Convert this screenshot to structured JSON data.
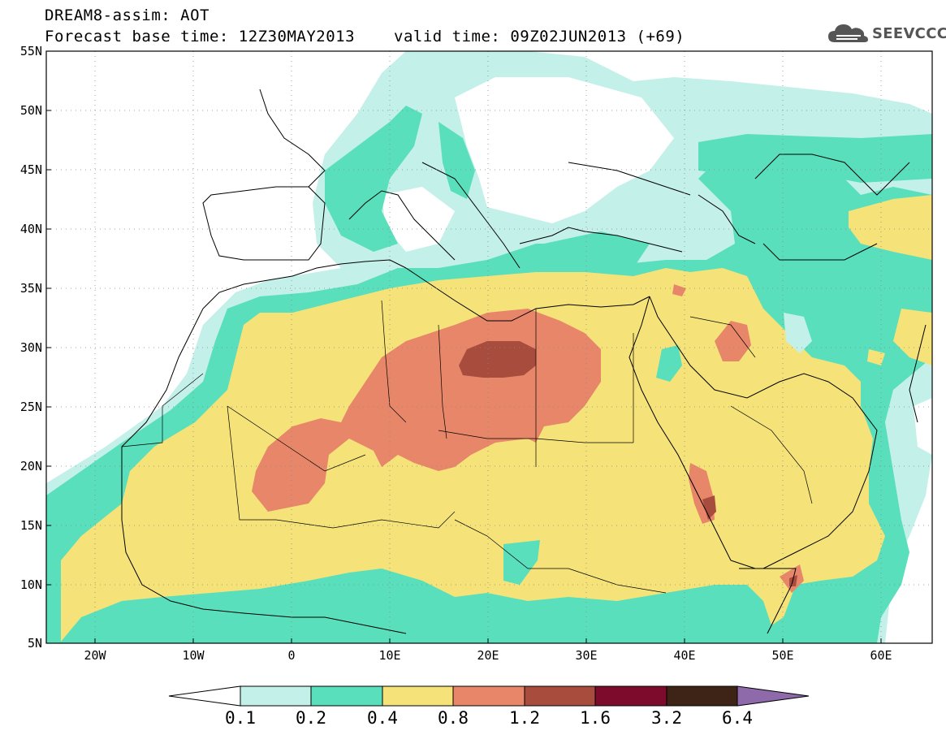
{
  "title": {
    "line1": "DREAM8-assim: AOT",
    "base": "Forecast base time: 12Z30MAY2013",
    "valid": "valid time: 09Z02JUN2013 (+69)"
  },
  "logo": {
    "text": "SEEVCCC",
    "icon": "cloud-icon",
    "color": "#555555"
  },
  "map": {
    "projection": "lat-lon",
    "lon_range": [
      -25,
      65
    ],
    "lat_range": [
      5,
      55
    ],
    "lat_ticks": [
      "55N",
      "50N",
      "45N",
      "40N",
      "35N",
      "30N",
      "25N",
      "20N",
      "15N",
      "10N",
      "5N"
    ],
    "lon_ticks": [
      "20W",
      "10W",
      "0",
      "10E",
      "20E",
      "30E",
      "40E",
      "50E",
      "60E"
    ],
    "grid": "dotted",
    "field": "AOT"
  },
  "colorbar": {
    "labels": [
      "0.1",
      "0.2",
      "0.4",
      "0.8",
      "1.2",
      "1.6",
      "3.2",
      "6.4"
    ],
    "colors": [
      "#ffffff",
      "#c4f0ea",
      "#59dfbc",
      "#f5e37a",
      "#e8866a",
      "#a84c3e",
      "#7c0b2c",
      "#3e2417",
      "#8e6aaa"
    ]
  }
}
